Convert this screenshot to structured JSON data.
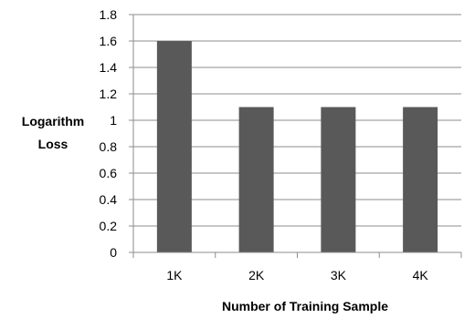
{
  "chart_data": {
    "type": "bar",
    "categories": [
      "1K",
      "2K",
      "3K",
      "4K"
    ],
    "values": [
      1.6,
      1.1,
      1.1,
      1.1
    ],
    "ylim": [
      0,
      1.8
    ],
    "yticks": [
      "0",
      "0.2",
      "0.4",
      "0.6",
      "0.8",
      "1",
      "1.2",
      "1.4",
      "1.6",
      "1.8"
    ],
    "xlabel": "Number of Training Sample",
    "ylabel_lines": [
      "Logarithm",
      "Loss"
    ],
    "grid": true,
    "bar_color": "#595959",
    "grid_color": "#8c8c8c",
    "axis_color": "#8c8c8c"
  }
}
